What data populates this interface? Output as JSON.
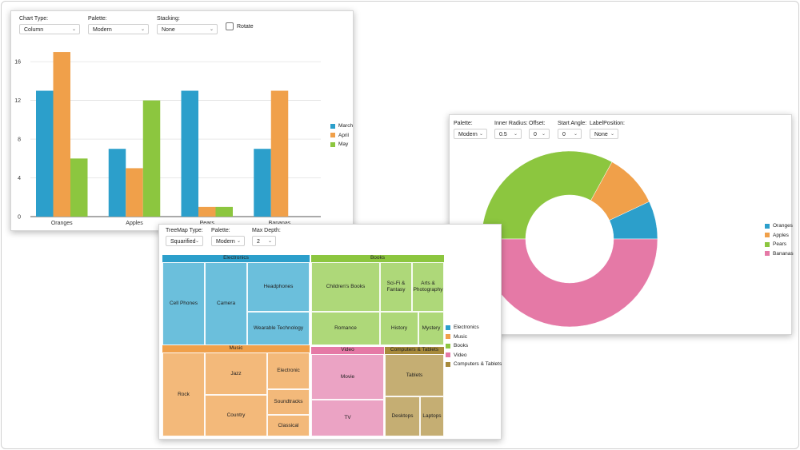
{
  "colors": {
    "orange": "#f0a04a",
    "blue": "#2c9fcb",
    "green": "#8cc63f",
    "pink": "#e579a6"
  },
  "column_panel": {
    "chart_type_label": "Chart Type:",
    "chart_type_value": "Column",
    "palette_label": "Palette:",
    "palette_value": "Modern",
    "stacking_label": "Stacking:",
    "stacking_value": "None",
    "rotate_label": "Rotate"
  },
  "donut_panel": {
    "palette_label": "Palette:",
    "palette_value": "Modern",
    "inner_radius_label": "Inner Radius:",
    "inner_radius_value": "0.5",
    "offset_label": "Offset:",
    "offset_value": "0",
    "start_angle_label": "Start Angle:",
    "start_angle_value": "0",
    "label_position_label": "LabelPosition:",
    "label_position_value": "None"
  },
  "treemap_panel": {
    "treemap_type_label": "TreeMap Type:",
    "treemap_type_value": "Squarified",
    "palette_label": "Palette:",
    "palette_value": "Modern",
    "max_depth_label": "Max Depth:",
    "max_depth_value": "2"
  },
  "chart_data": [
    {
      "type": "bar",
      "title": "",
      "categories": [
        "Oranges",
        "Apples",
        "Pears",
        "Bananas"
      ],
      "series": [
        {
          "name": "March",
          "values": [
            13,
            7,
            13,
            7
          ],
          "color": "#2c9fcb"
        },
        {
          "name": "April",
          "values": [
            17,
            5,
            1,
            13
          ],
          "color": "#f0a04a"
        },
        {
          "name": "May",
          "values": [
            6,
            12,
            1,
            0
          ],
          "color": "#8cc63f"
        }
      ],
      "y_ticks": [
        "0",
        "4",
        "8",
        "12",
        "16"
      ],
      "ylim": [
        0,
        17.5
      ],
      "grid": true,
      "legend": "right"
    },
    {
      "type": "pie",
      "inner_radius": 0.5,
      "slices": [
        {
          "name": "Oranges",
          "value": 7,
          "color": "#2c9fcb"
        },
        {
          "name": "Apples",
          "value": 10,
          "color": "#f0a04a"
        },
        {
          "name": "Pears",
          "value": 33,
          "color": "#8cc63f"
        },
        {
          "name": "Bananas",
          "value": 50,
          "color": "#e579a6"
        }
      ],
      "legend": "right"
    },
    {
      "type": "treemap",
      "groups": [
        {
          "name": "Electronics",
          "color": "#2c9fcb",
          "fill": "#6bbfdc",
          "items": [
            "Cell Phones",
            "Camera",
            "Headphones",
            "Wearable Technology"
          ]
        },
        {
          "name": "Music",
          "color": "#f0a04a",
          "fill": "#f3b97a",
          "items": [
            "Rock",
            "Jazz",
            "Country",
            "Electronic",
            "Soundtracks",
            "Classical"
          ]
        },
        {
          "name": "Books",
          "color": "#8cc63f",
          "fill": "#aed879",
          "items": [
            "Children's Books",
            "Romance",
            "Sci-Fi & Fantasy",
            "Arts & Photography",
            "History",
            "Mystery"
          ]
        },
        {
          "name": "Video",
          "color": "#e579a6",
          "fill": "#eba3c4",
          "items": [
            "Movie",
            "TV"
          ]
        },
        {
          "name": "Computers & Tablets",
          "color": "#a78a3b",
          "fill": "#c5ae73",
          "items": [
            "Tablets",
            "Desktops",
            "Laptops"
          ]
        }
      ],
      "legend": "right"
    }
  ]
}
